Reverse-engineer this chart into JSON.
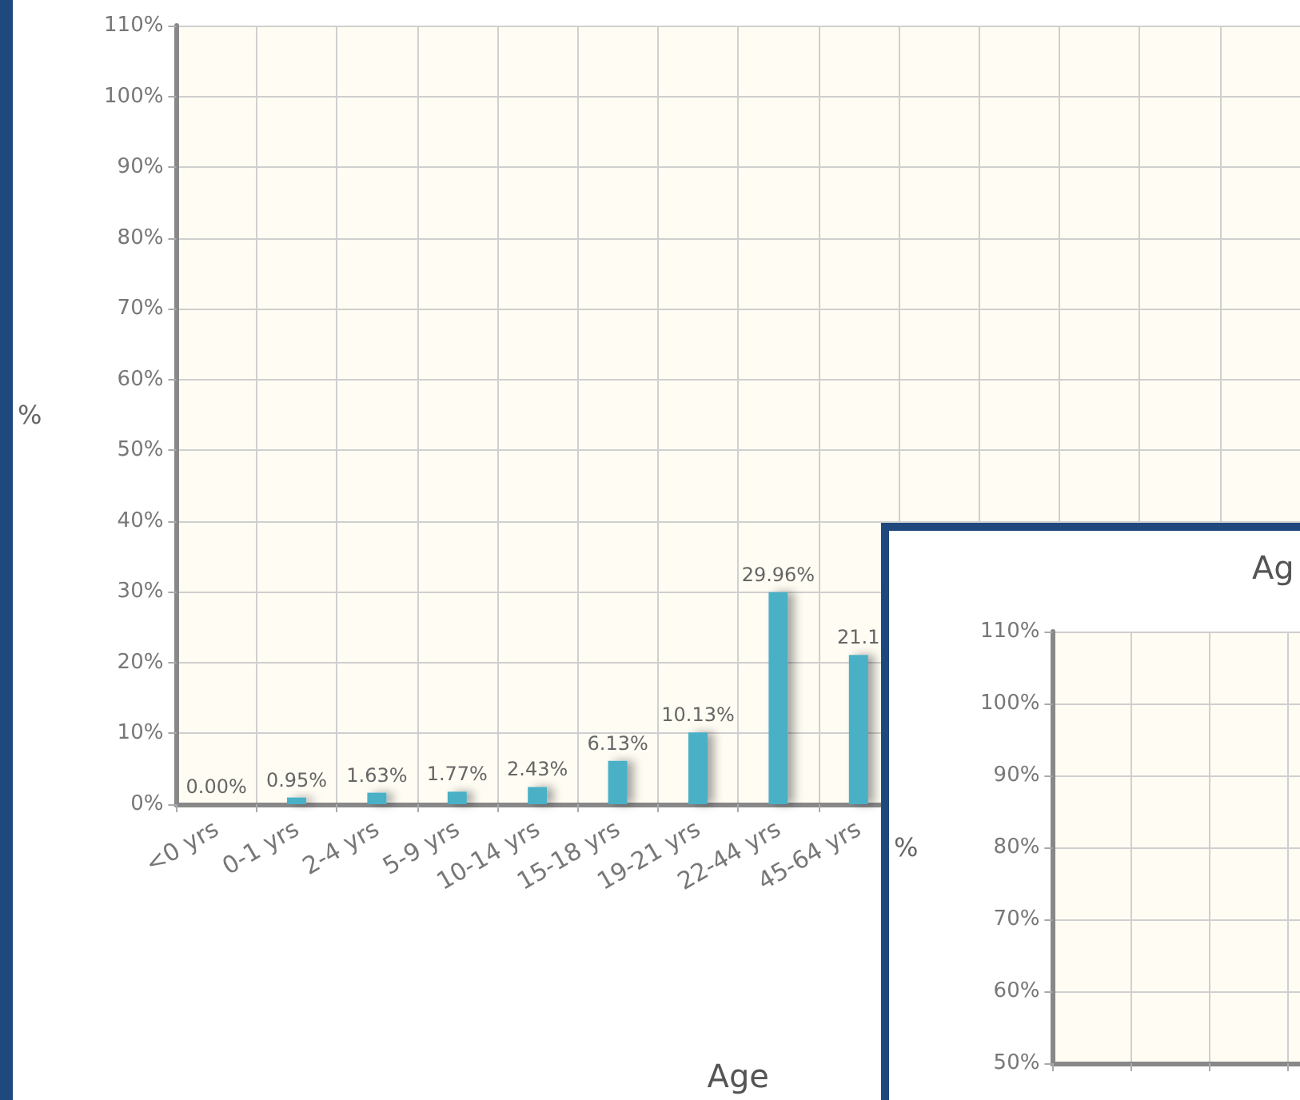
{
  "chart_data": [
    {
      "type": "bar",
      "xlabel": "Age",
      "ylabel": "%",
      "categories": [
        "<0 yrs",
        "0-1 yrs",
        "2-4 yrs",
        "5-9 yrs",
        "10-14 yrs",
        "15-18 yrs",
        "19-21 yrs",
        "22-44 yrs",
        "45-64 yrs",
        null,
        null,
        null,
        null,
        null
      ],
      "values": [
        0,
        0.95,
        1.63,
        1.77,
        2.43,
        6.13,
        10.13,
        29.96,
        21.1,
        null,
        null,
        null,
        null,
        null
      ],
      "value_labels": [
        "0.00%",
        "0.95%",
        "1.63%",
        "1.77%",
        "2.43%",
        "6.13%",
        "10.13%",
        "29.96%",
        "21.1",
        null,
        null,
        null,
        null,
        null
      ],
      "color": "#4ab0c6",
      "ylim": [
        0,
        110
      ],
      "yticks": [
        {
          "value": 0,
          "label": "0%"
        },
        {
          "value": 10,
          "label": "10%"
        },
        {
          "value": 20,
          "label": "20%"
        },
        {
          "value": 30,
          "label": "30%"
        },
        {
          "value": 40,
          "label": "40%"
        },
        {
          "value": 50,
          "label": "50%"
        },
        {
          "value": 60,
          "label": "60%"
        },
        {
          "value": 70,
          "label": "70%"
        },
        {
          "value": 80,
          "label": "80%"
        },
        {
          "value": 90,
          "label": "90%"
        },
        {
          "value": 100,
          "label": "100%"
        },
        {
          "value": 110,
          "label": "110%"
        }
      ],
      "grid": true
    },
    {
      "type": "bar",
      "title": "Ag",
      "ylabel": "%",
      "categories": [
        null,
        null,
        null,
        null,
        null,
        null
      ],
      "ylim": [
        50,
        110
      ],
      "yticks": [
        {
          "value": 50,
          "label": "50%"
        },
        {
          "value": 60,
          "label": "60%"
        },
        {
          "value": 70,
          "label": "70%"
        },
        {
          "value": 80,
          "label": "80%"
        },
        {
          "value": 90,
          "label": "90%"
        },
        {
          "value": 100,
          "label": "100%"
        },
        {
          "value": 110,
          "label": "110%"
        }
      ],
      "grid": true
    }
  ]
}
